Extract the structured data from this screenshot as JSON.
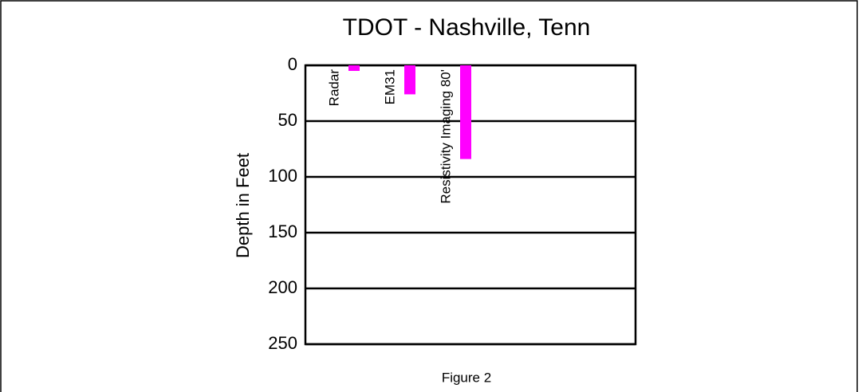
{
  "chart_data": {
    "type": "bar",
    "title": "TDOT - Nashville, Tenn",
    "y_label": "Depth in Feet",
    "caption": "Figure 2",
    "categories": [
      "Radar",
      "EM31",
      "Resistivity Imaging 80'"
    ],
    "values": [
      5,
      26,
      84
    ],
    "color": "#ff00ff",
    "ylim": [
      0,
      250
    ],
    "yticks": [
      0,
      50,
      100,
      150,
      200,
      250
    ],
    "y_inverted": true,
    "grid": true
  }
}
